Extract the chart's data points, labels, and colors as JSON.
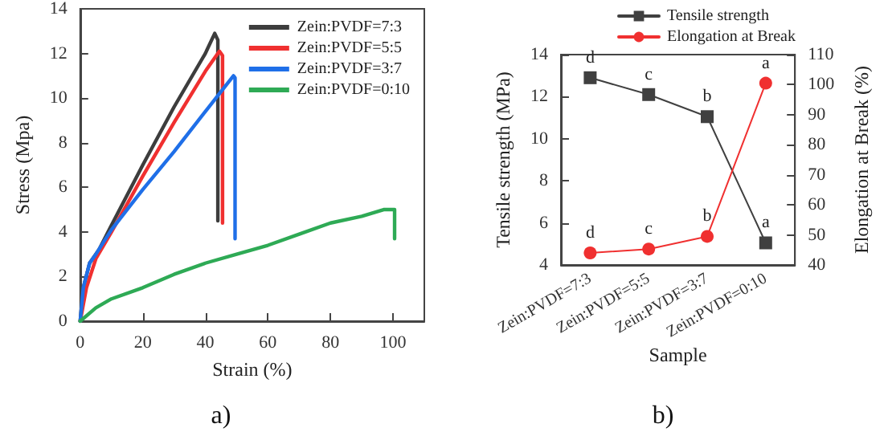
{
  "chart_data": [
    {
      "type": "line",
      "xlabel": "Strain (%)",
      "ylabel": "Stress (Mpa)",
      "annotations": [
        "a)"
      ],
      "xlim": [
        0,
        110
      ],
      "xticks": [
        0,
        20,
        40,
        60,
        80,
        100
      ],
      "ylim": [
        0,
        14
      ],
      "yticks": [
        0,
        2,
        4,
        6,
        8,
        10,
        12,
        14
      ],
      "grid": false,
      "legend": "top right",
      "marker": "none",
      "line_style": "solid",
      "series": [
        {
          "name": "Zein:PVDF=7:3",
          "color": "#3d3d3d",
          "x": [
            0,
            1,
            3,
            6,
            10,
            20,
            30,
            40,
            43,
            44,
            44
          ],
          "values": [
            0,
            1.5,
            2.6,
            3.2,
            4.3,
            7.0,
            9.6,
            12.0,
            12.9,
            12.6,
            4.5
          ]
        },
        {
          "name": "Zein:PVDF=5:5",
          "color": "#f03030",
          "x": [
            0,
            2,
            5,
            10,
            20,
            30,
            40,
            44.5,
            45.5,
            45.5
          ],
          "values": [
            0,
            1.5,
            2.8,
            4.0,
            6.5,
            8.9,
            11.2,
            12.1,
            11.9,
            4.4
          ]
        },
        {
          "name": "Zein:PVDF=3:7",
          "color": "#1f6fe8",
          "x": [
            0,
            1,
            3,
            5,
            10,
            20,
            30,
            40,
            49,
            49.5,
            49.5
          ],
          "values": [
            0,
            1.5,
            2.6,
            3.0,
            4.1,
            5.9,
            7.6,
            9.4,
            11.0,
            10.9,
            3.7
          ]
        },
        {
          "name": "Zein:PVDF=0:10",
          "color": "#2eaa55",
          "x": [
            0,
            5,
            10,
            20,
            30,
            40,
            50,
            60,
            70,
            80,
            90,
            97,
            100.5,
            100.5
          ],
          "values": [
            0,
            0.6,
            1.0,
            1.5,
            2.1,
            2.6,
            3.0,
            3.4,
            3.9,
            4.4,
            4.7,
            5.0,
            5.0,
            3.7
          ]
        }
      ]
    },
    {
      "type": "line",
      "xlabel": "Sample",
      "ylabel": "Tensile strength (MPa)",
      "y2label": "Elongation at Break (%)",
      "annotations": [
        "b)"
      ],
      "categories": [
        "Zein:PVDF=7:3",
        "Zein:PVDF=5:5",
        "Zein:PVDF=3:7",
        "Zein:PVDF=0:10"
      ],
      "ylim": [
        4,
        14
      ],
      "yticks": [
        4,
        6,
        8,
        10,
        12,
        14
      ],
      "y2lim": [
        40,
        110
      ],
      "y2ticks": [
        40,
        50,
        60,
        70,
        80,
        90,
        100,
        110
      ],
      "grid": false,
      "legend": "top",
      "line_style": "solid",
      "series": [
        {
          "name": "Tensile strength",
          "color": "#404040",
          "marker": "square",
          "values": [
            12.9,
            12.1,
            11.05,
            5.05
          ],
          "value_labels": [
            "d",
            "c",
            "b",
            "a"
          ]
        },
        {
          "name": "Elongation at Break",
          "color": "#f03030",
          "marker": "circle",
          "axis": "y2",
          "values": [
            44,
            45.3,
            49.5,
            100.5
          ],
          "value_labels": [
            "d",
            "c",
            "b",
            "a"
          ]
        }
      ]
    }
  ]
}
